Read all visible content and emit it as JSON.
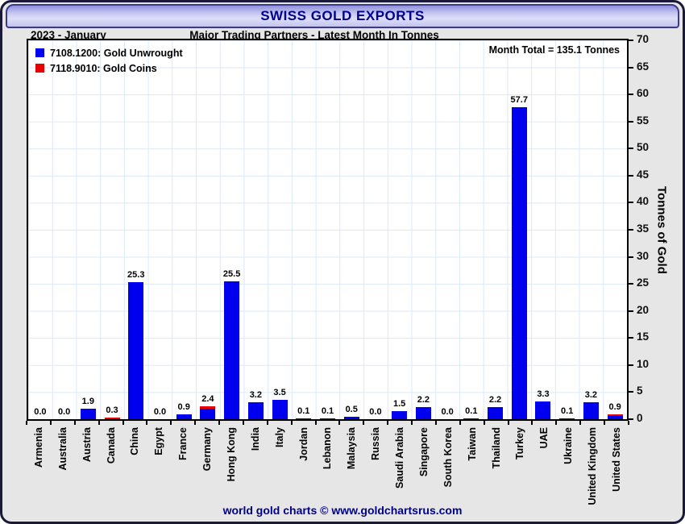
{
  "header": {
    "title": "SWISS GOLD EXPORTS"
  },
  "subheader": {
    "period": "2023 - January",
    "subtitle": "Major Trading Partners - Latest Month In Tonnes"
  },
  "legend": [
    {
      "label": "7108.1200: Gold Unwrought",
      "color": "#0000ee"
    },
    {
      "label": "7118.9010: Gold Coins",
      "color": "#e80000"
    }
  ],
  "annotations": {
    "month_total": "Month Total = 135.1 Tonnes"
  },
  "axes": {
    "y_label": "Tonnes of Gold",
    "y_min": 0,
    "y_max": 70,
    "y_step": 5,
    "y_ticks": [
      0,
      5,
      10,
      15,
      20,
      25,
      30,
      35,
      40,
      45,
      50,
      55,
      60,
      65,
      70
    ]
  },
  "footer": {
    "credit": "world gold charts © www.goldchartsrus.com"
  },
  "colors": {
    "unwrought_blue": "#0000ee",
    "coins_red": "#e80000",
    "grid": "#dce8f8",
    "title_navy": "#00008b",
    "frame_bg": "#e6e6e6"
  },
  "chart_data": {
    "type": "bar",
    "stacked": true,
    "title": "SWISS GOLD EXPORTS",
    "subtitle": "Major Trading Partners - Latest Month In Tonnes",
    "period": "2023 - January",
    "month_total_tonnes": 135.1,
    "xlabel": "",
    "ylabel": "Tonnes of Gold",
    "ylim": [
      0,
      70
    ],
    "grid": true,
    "legend_position": "top-left",
    "categories": [
      "Armenia",
      "Australia",
      "Austria",
      "Canada",
      "China",
      "Egypt",
      "France",
      "Germany",
      "Hong Kong",
      "India",
      "Italy",
      "Jordan",
      "Lebanon",
      "Malaysia",
      "Russia",
      "Saudi Arabia",
      "Singapore",
      "South Korea",
      "Taiwan",
      "Thailand",
      "Turkey",
      "UAE",
      "Ukraine",
      "United Kingdom",
      "United States"
    ],
    "totals": [
      0.0,
      0.0,
      1.9,
      0.3,
      25.3,
      0.0,
      0.9,
      2.4,
      25.5,
      3.2,
      3.5,
      0.1,
      0.1,
      0.5,
      0.0,
      1.5,
      2.2,
      0.0,
      0.1,
      2.2,
      57.7,
      3.3,
      0.1,
      3.2,
      0.9
    ],
    "bar_labels": [
      "0.0",
      "0.0",
      "1.9",
      "0.3",
      "25.3",
      "0.0",
      "0.9",
      "2.4",
      "25.5",
      "3.2",
      "3.5",
      "0.1",
      "0.1",
      "0.5",
      "0.0",
      "1.5",
      "2.2",
      "0.0",
      "0.1",
      "2.2",
      "57.7",
      "3.3",
      "0.1",
      "3.2",
      "0.9"
    ],
    "series": [
      {
        "name": "7108.1200: Gold Unwrought",
        "color": "#0000ee",
        "values": [
          0.0,
          0.0,
          1.9,
          0.0,
          25.3,
          0.0,
          0.9,
          2.0,
          25.5,
          3.2,
          3.5,
          0.1,
          0.1,
          0.5,
          0.0,
          1.5,
          2.2,
          0.0,
          0.1,
          2.2,
          57.7,
          3.3,
          0.1,
          3.2,
          0.55
        ]
      },
      {
        "name": "7118.9010: Gold Coins",
        "color": "#e80000",
        "values": [
          0.0,
          0.0,
          0.0,
          0.3,
          0.0,
          0.0,
          0.0,
          0.4,
          0.0,
          0.0,
          0.0,
          0.0,
          0.0,
          0.0,
          0.0,
          0.0,
          0.0,
          0.0,
          0.0,
          0.0,
          0.0,
          0.0,
          0.0,
          0.0,
          0.35
        ]
      }
    ]
  }
}
